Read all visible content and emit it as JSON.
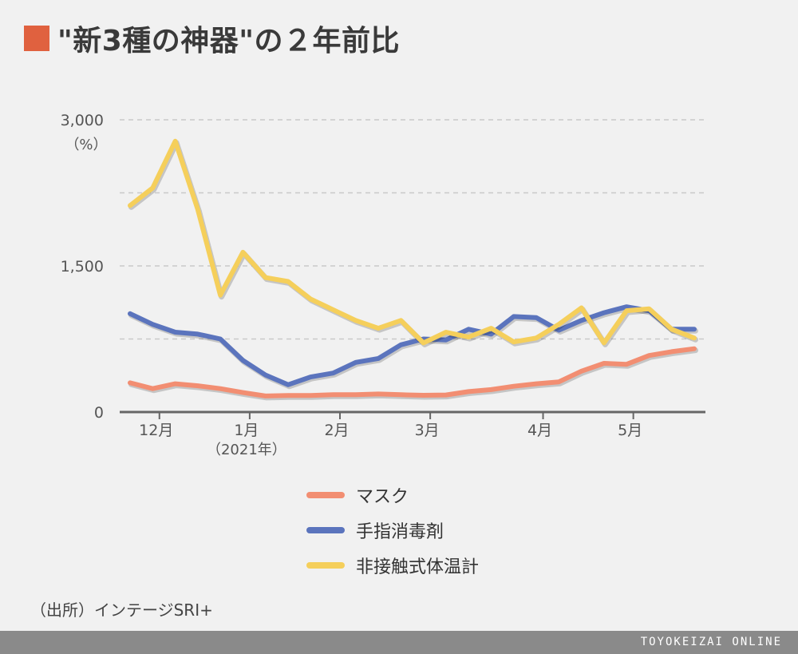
{
  "title": "\"新3種の神器\"の２年前比",
  "colors": {
    "title_square": "#e0613f",
    "background": "#f1f1f1",
    "footer_bg": "#8a8a8a"
  },
  "source_note": "（出所）インテージSRI+",
  "footer_brand": "TOYOKEIZAI ONLINE",
  "chart_data": {
    "type": "line",
    "unit_label": "（%）",
    "xlabel": "",
    "ylabel": "",
    "ylim": [
      0,
      3000
    ],
    "y_ticks": [
      {
        "value": 0,
        "label": "0"
      },
      {
        "value": 1500,
        "label": "1,500"
      },
      {
        "value": 3000,
        "label": "3,000"
      }
    ],
    "gridlines": [
      750,
      1500,
      2250,
      3000
    ],
    "x_count": 26,
    "x_ticks": [
      {
        "index": 1.3,
        "label": "12月"
      },
      {
        "index": 5.3,
        "label": "1月",
        "sublabel": "（2021年）"
      },
      {
        "index": 9.3,
        "label": "2月"
      },
      {
        "index": 13.3,
        "label": "3月"
      },
      {
        "index": 18.3,
        "label": "4月"
      },
      {
        "index": 22.3,
        "label": "5月"
      }
    ],
    "series": [
      {
        "name": "マスク",
        "color": "#f28e72",
        "values": [
          300,
          240,
          290,
          270,
          240,
          200,
          165,
          170,
          170,
          178,
          178,
          185,
          178,
          172,
          175,
          210,
          230,
          265,
          290,
          310,
          420,
          500,
          490,
          580,
          620,
          650
        ]
      },
      {
        "name": "手指消毒剤",
        "color": "#5b74bd",
        "values": [
          1010,
          900,
          820,
          800,
          750,
          530,
          380,
          280,
          360,
          400,
          510,
          550,
          690,
          750,
          740,
          850,
          800,
          980,
          970,
          840,
          940,
          1020,
          1080,
          1040,
          850,
          850
        ]
      },
      {
        "name": "非接触式体温計",
        "color": "#f5cf5b",
        "values": [
          2120,
          2300,
          2780,
          2080,
          1200,
          1640,
          1380,
          1340,
          1160,
          1050,
          940,
          860,
          940,
          710,
          820,
          770,
          860,
          720,
          760,
          900,
          1070,
          710,
          1040,
          1060,
          850,
          760
        ]
      }
    ]
  }
}
